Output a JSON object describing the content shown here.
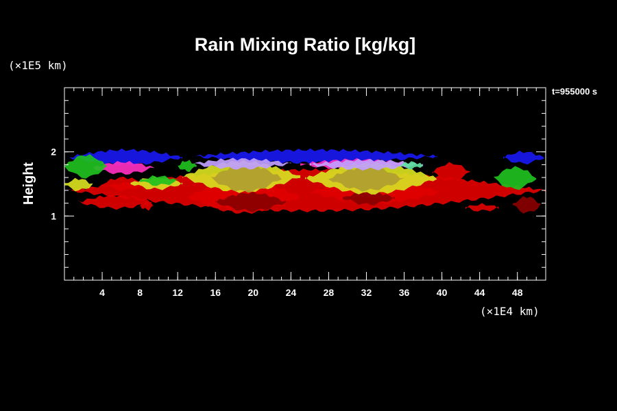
{
  "chart_data": {
    "type": "heatmap",
    "title": "Rain Mixing Ratio [kg/kg]",
    "ylabel": "Height",
    "x_unit_label": "(×1E4 km)",
    "y_unit_label": "(×1E5 km)",
    "time_label": "t=955000 s",
    "xlim": [
      0,
      51
    ],
    "ylim": [
      0,
      3
    ],
    "x_ticks": [
      "4",
      "8",
      "12",
      "16",
      "20",
      "24",
      "28",
      "32",
      "36",
      "40",
      "44",
      "48"
    ],
    "y_ticks": [
      "1",
      "2"
    ],
    "x_tick_values": [
      4,
      8,
      12,
      16,
      20,
      24,
      28,
      32,
      36,
      40,
      44,
      48
    ],
    "y_tick_values": [
      1,
      2
    ],
    "x_minor_step": 1,
    "y_minor_step": 0.2,
    "grid": false,
    "colors": {
      "red": "#e00000",
      "dark_red": "#8a0000",
      "green": "#20c020",
      "yellow": "#d8e020",
      "olive": "#b0a030",
      "blue": "#1818f0",
      "magenta": "#ff30c0",
      "cyan": "#60e0a0",
      "lavender": "#c0a0ff"
    },
    "regions": [
      {
        "color": "blue",
        "x": [
          0.5,
          12.5
        ],
        "y": [
          1.8,
          2.03
        ]
      },
      {
        "color": "blue",
        "x": [
          13.5,
          39.5
        ],
        "y": [
          1.83,
          2.03
        ]
      },
      {
        "color": "blue",
        "x": [
          46.5,
          50.8
        ],
        "y": [
          1.82,
          2.0
        ]
      },
      {
        "color": "magenta",
        "x": [
          3.0,
          9.5
        ],
        "y": [
          1.66,
          1.84
        ]
      },
      {
        "color": "magenta",
        "x": [
          25.0,
          37.0
        ],
        "y": [
          1.73,
          1.88
        ]
      },
      {
        "color": "red",
        "x": [
          0.5,
          51
        ],
        "y": [
          1.08,
          1.72
        ]
      },
      {
        "color": "red",
        "x": [
          13.0,
          25.0
        ],
        "y": [
          1.05,
          1.55
        ]
      },
      {
        "color": "red",
        "x": [
          26.0,
          40.0
        ],
        "y": [
          1.2,
          1.55
        ]
      },
      {
        "color": "red",
        "x": [
          39.0,
          43.0
        ],
        "y": [
          1.55,
          1.82
        ]
      },
      {
        "color": "dark_red",
        "x": [
          16.0,
          23.5
        ],
        "y": [
          1.08,
          1.36
        ]
      },
      {
        "color": "dark_red",
        "x": [
          29.5,
          35.0
        ],
        "y": [
          1.18,
          1.38
        ]
      },
      {
        "color": "dark_red",
        "x": [
          47.5,
          50.5
        ],
        "y": [
          1.05,
          1.3
        ]
      },
      {
        "color": "red",
        "x": [
          1.5,
          9.5
        ],
        "y": [
          1.12,
          1.32
        ]
      },
      {
        "color": "red",
        "x": [
          4.0,
          8.5
        ],
        "y": [
          1.4,
          1.6
        ]
      },
      {
        "color": "yellow",
        "x": [
          12.5,
          25.0
        ],
        "y": [
          1.38,
          1.85
        ]
      },
      {
        "color": "yellow",
        "x": [
          25.5,
          39.5
        ],
        "y": [
          1.35,
          1.82
        ]
      },
      {
        "color": "yellow",
        "x": [
          7.0,
          12.5
        ],
        "y": [
          1.42,
          1.6
        ]
      },
      {
        "color": "yellow",
        "x": [
          0.0,
          3.0
        ],
        "y": [
          1.4,
          1.58
        ]
      },
      {
        "color": "olive",
        "x": [
          15.5,
          23.0
        ],
        "y": [
          1.38,
          1.8
        ]
      },
      {
        "color": "olive",
        "x": [
          28.0,
          36.0
        ],
        "y": [
          1.4,
          1.76
        ]
      },
      {
        "color": "lavender",
        "x": [
          13.5,
          24.0
        ],
        "y": [
          1.74,
          1.89
        ]
      },
      {
        "color": "lavender",
        "x": [
          26.0,
          38.0
        ],
        "y": [
          1.73,
          1.87
        ]
      },
      {
        "color": "green",
        "x": [
          0.0,
          4.5
        ],
        "y": [
          1.6,
          1.95
        ]
      },
      {
        "color": "green",
        "x": [
          8.0,
          12.0
        ],
        "y": [
          1.48,
          1.62
        ]
      },
      {
        "color": "green",
        "x": [
          45.5,
          50.0
        ],
        "y": [
          1.42,
          1.76
        ]
      },
      {
        "color": "green",
        "x": [
          12.0,
          14.0
        ],
        "y": [
          1.7,
          1.86
        ]
      },
      {
        "color": "cyan",
        "x": [
          35.5,
          38.0
        ],
        "y": [
          1.74,
          1.84
        ]
      },
      {
        "color": "red",
        "x": [
          42.5,
          46.0
        ],
        "y": [
          1.08,
          1.18
        ]
      },
      {
        "color": "red",
        "x": [
          8.0,
          9.5
        ],
        "y": [
          1.1,
          1.22
        ]
      }
    ]
  }
}
